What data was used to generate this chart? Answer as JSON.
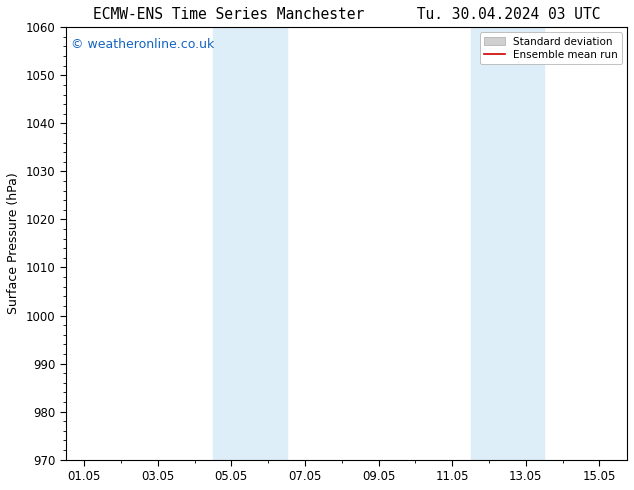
{
  "title_left": "ECMW-ENS Time Series Manchester",
  "title_right": "Tu. 30.04.2024 03 UTC",
  "ylabel": "Surface Pressure (hPa)",
  "ylim": [
    970,
    1060
  ],
  "yticks": [
    970,
    980,
    990,
    1000,
    1010,
    1020,
    1030,
    1040,
    1050,
    1060
  ],
  "xtick_labels": [
    "01.05",
    "03.05",
    "05.05",
    "07.05",
    "09.05",
    "11.05",
    "13.05",
    "15.05"
  ],
  "xtick_positions": [
    0,
    2,
    4,
    6,
    8,
    10,
    12,
    14
  ],
  "xlim": [
    -0.5,
    14.75
  ],
  "shade_bands": [
    {
      "x_start": 3.5,
      "x_end": 5.5,
      "color": "#ddeef8"
    },
    {
      "x_start": 10.5,
      "x_end": 12.5,
      "color": "#ddeef8"
    }
  ],
  "watermark": "© weatheronline.co.uk",
  "watermark_color": "#1565c0",
  "legend_entries": [
    {
      "label": "Standard deviation",
      "color": "#d0d0d0",
      "type": "box"
    },
    {
      "label": "Ensemble mean run",
      "color": "#cc0000",
      "type": "line"
    }
  ],
  "background_color": "#ffffff",
  "plot_bg_color": "#ffffff",
  "title_fontsize": 10.5,
  "axis_fontsize": 9,
  "tick_fontsize": 8.5,
  "watermark_fontsize": 9
}
